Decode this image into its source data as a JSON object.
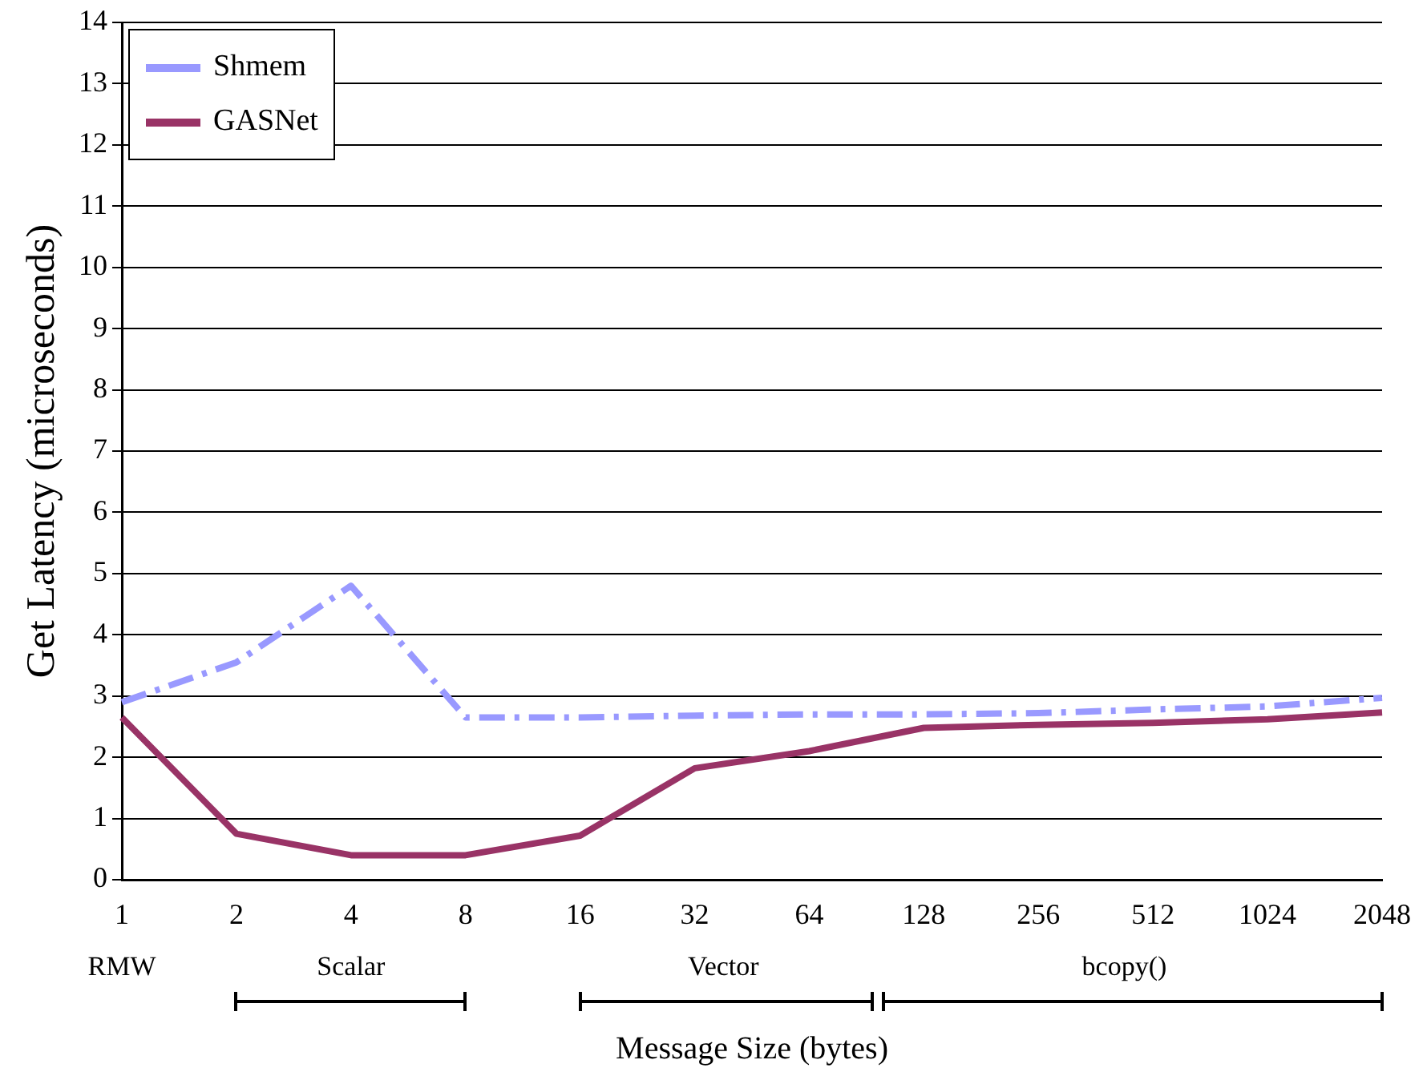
{
  "chart_data": {
    "type": "line",
    "xlabel": "Message Size (bytes)",
    "ylabel": "Get Latency (microseconds)",
    "categories": [
      "1",
      "2",
      "4",
      "8",
      "16",
      "32",
      "64",
      "128",
      "256",
      "512",
      "1024",
      "2048"
    ],
    "series": [
      {
        "name": "Shmem",
        "color": "#9999ff",
        "line_style": "dashed",
        "values": [
          2.9,
          3.55,
          4.8,
          2.65,
          2.65,
          2.68,
          2.7,
          2.7,
          2.72,
          2.78,
          2.83,
          2.97
        ]
      },
      {
        "name": "GASNet",
        "color": "#993366",
        "line_style": "solid",
        "values": [
          2.65,
          0.75,
          0.4,
          0.4,
          0.72,
          1.82,
          2.1,
          2.48,
          2.53,
          2.56,
          2.62,
          2.73
        ]
      }
    ],
    "ylim": [
      0,
      14
    ],
    "yticks": [
      0,
      1,
      2,
      3,
      4,
      5,
      6,
      7,
      8,
      9,
      10,
      11,
      12,
      13,
      14
    ],
    "grid": "y",
    "legend": "top left",
    "marker": "none",
    "annotations": [
      "RMW",
      "Scalar",
      "Vector",
      "bcopy()"
    ]
  }
}
